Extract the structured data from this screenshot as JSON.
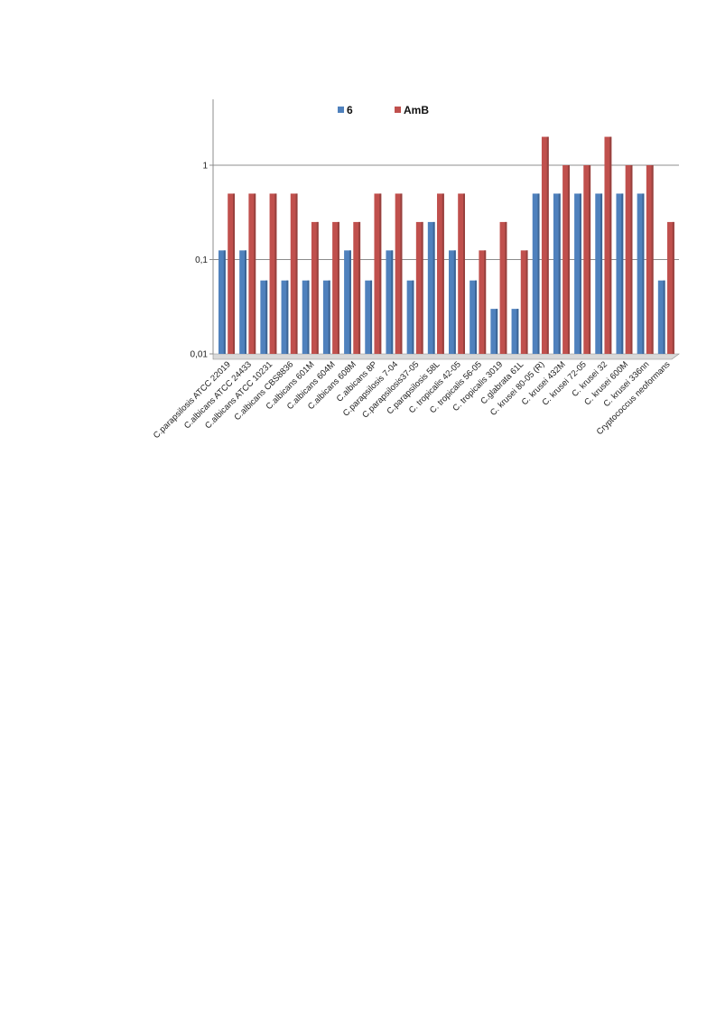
{
  "chart_data": {
    "type": "bar",
    "yscale": "log",
    "ylim": [
      0.01,
      5
    ],
    "grid": true,
    "legend": "top",
    "y_ticks": [
      {
        "value": 0.01,
        "label": "0,01"
      },
      {
        "value": 0.1,
        "label": "0,1"
      },
      {
        "value": 1,
        "label": "1"
      }
    ],
    "categories": [
      "C.parapsilosis ATCC 22019",
      "C.albicans ATCC 24433",
      "C.albicans ATCC 10231",
      "C.albicans CBS8836",
      "C.albicans 601M",
      "C.albicans 604M",
      "C.albicans 608M",
      "C.albicans 8P",
      "C.parapsilosis 7-04",
      "C.parapsilosis37-05",
      "C.parapsilosis 58L",
      "C. tropicalis 42-05",
      "C. tropicalis 56-05",
      "C. tropicalis 3019",
      "C.glabrata 61L",
      "C. krusei 80-05 (R)",
      "C. krusei 432M",
      "C. krusei 72-05",
      "C. krusei 32",
      "C. krusei 600M",
      "C. krusei 336nn",
      "Cryptococcus neoformans"
    ],
    "series": [
      {
        "name": "6",
        "color": "#4F81BD",
        "values": [
          0.125,
          0.125,
          0.06,
          0.06,
          0.06,
          0.06,
          0.125,
          0.06,
          0.125,
          0.06,
          0.25,
          0.125,
          0.06,
          0.03,
          0.03,
          0.5,
          0.5,
          0.5,
          0.5,
          0.5,
          0.5,
          0.06
        ]
      },
      {
        "name": "AmB",
        "color": "#C0504D",
        "values": [
          0.5,
          0.5,
          0.5,
          0.5,
          0.25,
          0.25,
          0.25,
          0.5,
          0.5,
          0.25,
          0.5,
          0.5,
          0.125,
          0.25,
          0.125,
          2,
          1,
          1,
          2,
          1,
          1,
          0.25
        ]
      }
    ]
  }
}
